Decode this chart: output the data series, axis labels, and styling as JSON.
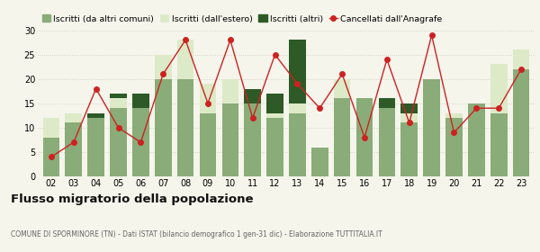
{
  "years": [
    "02",
    "03",
    "04",
    "05",
    "06",
    "07",
    "08",
    "09",
    "10",
    "11",
    "12",
    "13",
    "14",
    "15",
    "16",
    "17",
    "18",
    "19",
    "20",
    "21",
    "22",
    "23"
  ],
  "iscritti_comuni": [
    8,
    11,
    12,
    14,
    14,
    20,
    20,
    13,
    15,
    15,
    12,
    13,
    6,
    16,
    16,
    14,
    11,
    20,
    12,
    15,
    13,
    22
  ],
  "iscritti_estero": [
    4,
    2,
    0,
    2,
    0,
    5,
    8,
    6,
    5,
    0,
    1,
    2,
    0,
    4,
    0,
    0,
    2,
    0,
    1,
    0,
    10,
    4
  ],
  "iscritti_altri": [
    0,
    0,
    1,
    1,
    3,
    0,
    0,
    0,
    0,
    3,
    4,
    13,
    0,
    0,
    0,
    2,
    2,
    0,
    0,
    0,
    0,
    0
  ],
  "cancellati": [
    4,
    7,
    18,
    10,
    7,
    21,
    28,
    15,
    28,
    12,
    25,
    19,
    14,
    21,
    8,
    24,
    11,
    29,
    9,
    14,
    14,
    22
  ],
  "color_comuni": "#8aac78",
  "color_estero": "#ddeac8",
  "color_altri": "#2d5a27",
  "color_cancellati": "#cc2222",
  "ylim": [
    0,
    30
  ],
  "yticks": [
    0,
    5,
    10,
    15,
    20,
    25,
    30
  ],
  "legend_labels": [
    "Iscritti (da altri comuni)",
    "Iscritti (dall'estero)",
    "Iscritti (altri)",
    "Cancellati dall'Anagrafe"
  ],
  "title": "Flusso migratorio della popolazione",
  "subtitle": "COMUNE DI SPORMINORE (TN) - Dati ISTAT (bilancio demografico 1 gen-31 dic) - Elaborazione TUTTITALIA.IT",
  "bg_color": "#f5f5ec"
}
